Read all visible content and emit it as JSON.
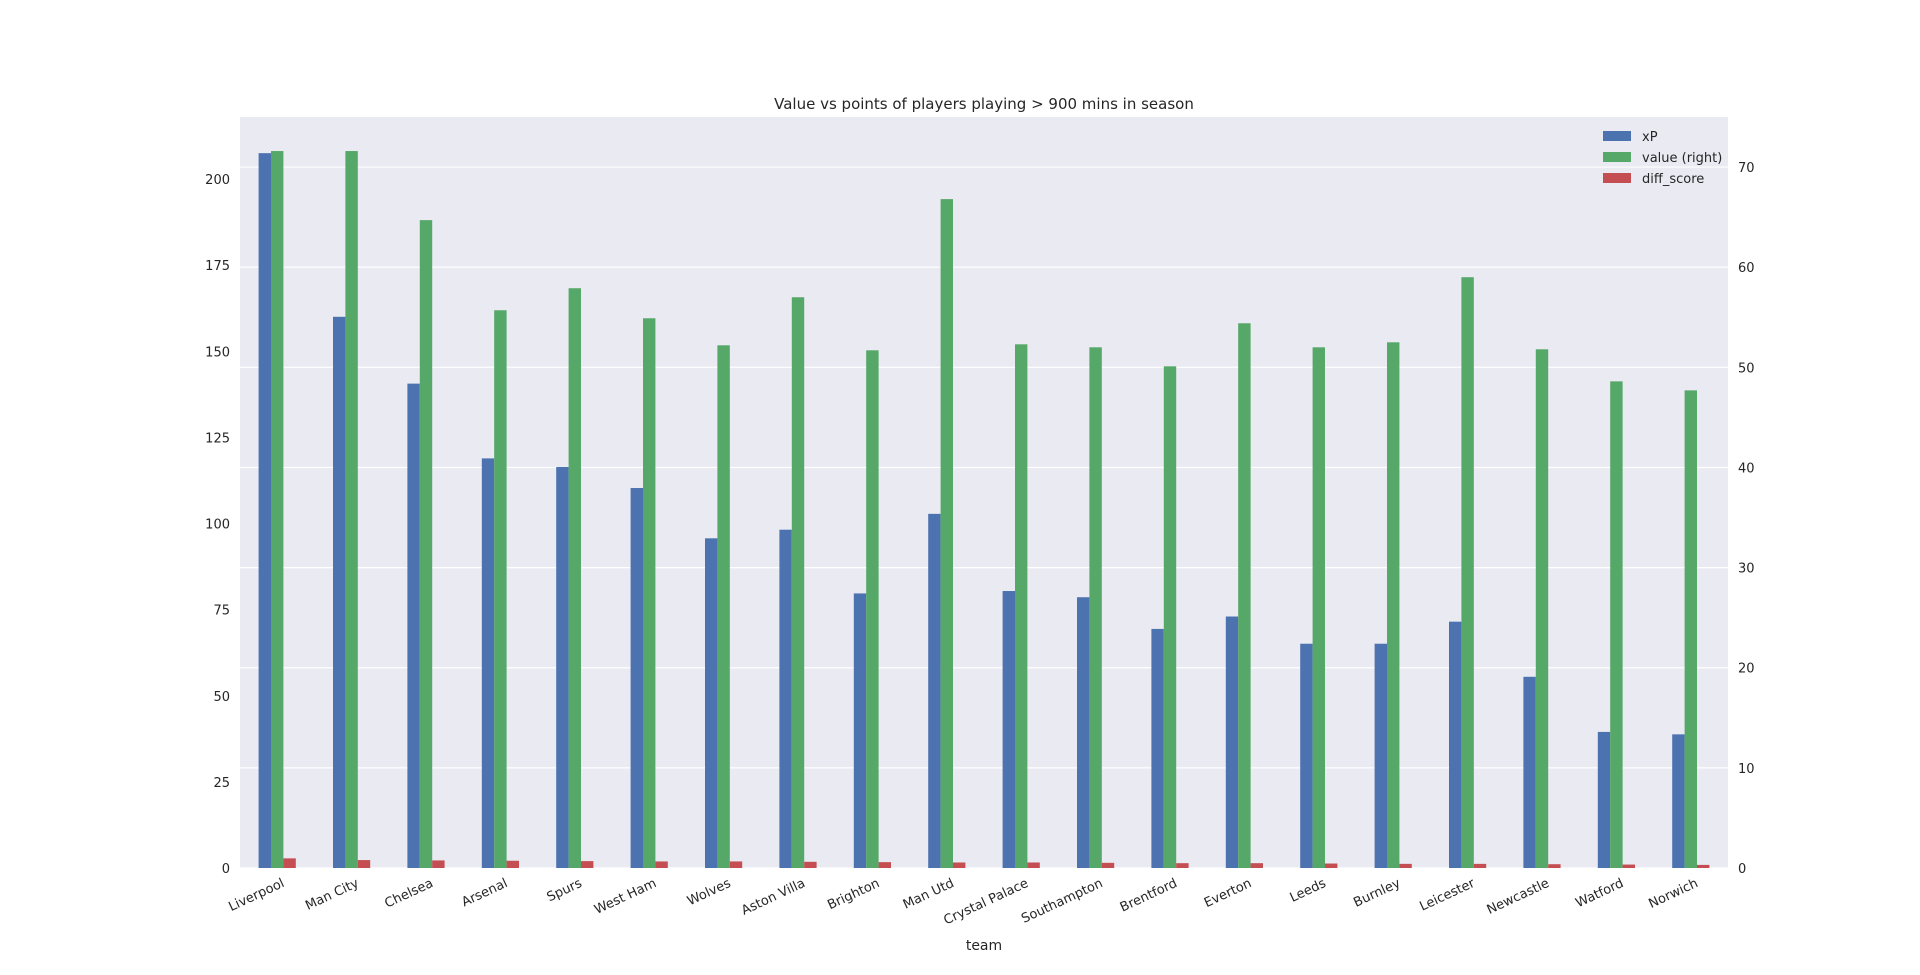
{
  "chart_data": {
    "type": "bar",
    "title": "Value vs points of players playing > 900 mins in season",
    "xlabel": "team",
    "ylabel": "",
    "ylabel_right": "",
    "categories": [
      "Liverpool",
      "Man City",
      "Chelsea",
      "Arsenal",
      "Spurs",
      "West Ham",
      "Wolves",
      "Aston Villa",
      "Brighton",
      "Man Utd",
      "Crystal Palace",
      "Southampton",
      "Brentford",
      "Everton",
      "Leeds",
      "Burnley",
      "Leicester",
      "Newcastle",
      "Watford",
      "Norwich"
    ],
    "series": [
      {
        "name": "xP",
        "axis": "left",
        "color": "#4c72b0",
        "values": [
          207.5,
          160,
          140.6,
          118.9,
          116.4,
          110.3,
          95.7,
          98.2,
          79.7,
          102.8,
          80.4,
          78.6,
          69.4,
          73.0,
          65.1,
          65.1,
          71.5,
          55.5,
          39.5,
          38.8
        ]
      },
      {
        "name": "value (right)",
        "axis": "right",
        "color": "#55a868",
        "values": [
          71.6,
          71.6,
          64.7,
          55.7,
          57.9,
          54.9,
          52.2,
          57.0,
          51.7,
          66.8,
          52.3,
          52.0,
          50.1,
          54.4,
          52.0,
          52.5,
          59.0,
          51.8,
          48.6,
          47.7
        ]
      },
      {
        "name": "diff_score",
        "axis": "left",
        "color": "#c44e52",
        "values": [
          2.8,
          2.3,
          2.2,
          2.1,
          2.0,
          1.9,
          1.9,
          1.8,
          1.7,
          1.6,
          1.6,
          1.5,
          1.4,
          1.4,
          1.3,
          1.2,
          1.2,
          1.1,
          1.0,
          0.9
        ]
      }
    ],
    "ylim": [
      0,
      218
    ],
    "ylim_right": [
      0,
      75
    ],
    "yticks": [
      0,
      25,
      50,
      75,
      100,
      125,
      150,
      175,
      200
    ],
    "yticks_right": [
      0,
      10,
      20,
      30,
      40,
      50,
      60,
      70
    ],
    "grid": true,
    "legend_position": "top-right",
    "background_color": "#eaeaf2"
  }
}
